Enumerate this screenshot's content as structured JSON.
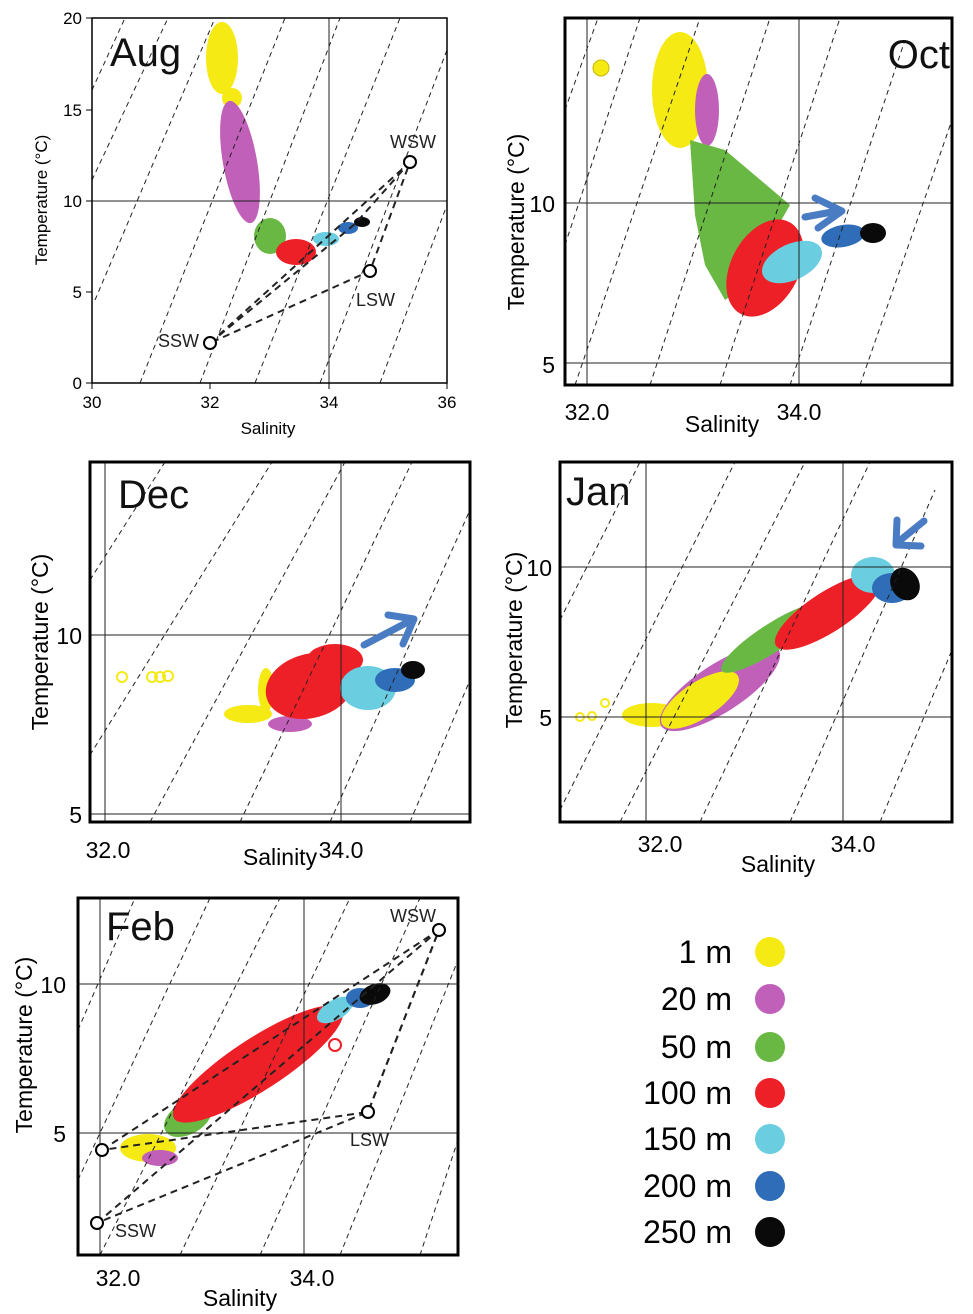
{
  "panels": [
    {
      "month": "Aug",
      "xlabel": "Salinity",
      "ylabel": "Temperature (°C)",
      "x_ticks": [
        "30",
        "32",
        "34",
        "36"
      ],
      "y_ticks": [
        "0",
        "5",
        "10",
        "15",
        "20"
      ],
      "water_masses": [
        {
          "label": "WSW",
          "salinity": 35.4,
          "temperature": 12.1
        },
        {
          "label": "LSW",
          "salinity": 34.6,
          "temperature": 6.0
        },
        {
          "label": "SSW",
          "salinity": 32.0,
          "temperature": 2.2
        }
      ]
    },
    {
      "month": "Oct",
      "xlabel": "Salinity",
      "ylabel": "Temperature (°C)",
      "x_ticks": [
        "32.0",
        "34.0"
      ],
      "y_ticks": [
        "5",
        "10"
      ]
    },
    {
      "month": "Dec",
      "xlabel": "Salinity",
      "ylabel": "Temperature (°C)",
      "x_ticks": [
        "32.0",
        "34.0"
      ],
      "y_ticks": [
        "5",
        "10"
      ]
    },
    {
      "month": "Jan",
      "xlabel": "Salinity",
      "ylabel": "Temperature (°C)",
      "x_ticks": [
        "32.0",
        "34.0"
      ],
      "y_ticks": [
        "5",
        "10"
      ]
    },
    {
      "month": "Feb",
      "xlabel": "Salinity",
      "ylabel": "Temperature (°C)",
      "x_ticks": [
        "32.0",
        "34.0"
      ],
      "y_ticks": [
        "5",
        "10"
      ],
      "water_masses": [
        {
          "label": "WSW",
          "salinity": 35.1,
          "temperature": 11.8
        },
        {
          "label": "LSW",
          "salinity": 34.6,
          "temperature": 5.7
        },
        {
          "label": "SSW",
          "salinity": 31.9,
          "temperature": 2.0
        }
      ]
    }
  ],
  "legend": [
    {
      "label": "1 m",
      "color": "#f5ea14"
    },
    {
      "label": "20 m",
      "color": "#c060b8"
    },
    {
      "label": "50 m",
      "color": "#6ab844"
    },
    {
      "label": "100 m",
      "color": "#ee2027"
    },
    {
      "label": "150 m",
      "color": "#6acee0"
    },
    {
      "label": "200 m",
      "color": "#2f6db8"
    },
    {
      "label": "250 m",
      "color": "#0a0a0a"
    }
  ],
  "chart_data": [
    {
      "type": "scatter",
      "title": "Aug",
      "xlabel": "Salinity",
      "ylabel": "Temperature (°C)",
      "xlim": [
        30,
        36
      ],
      "ylim": [
        0,
        20
      ],
      "series": [
        {
          "name": "1 m",
          "points": [
            [
              32.1,
              15.5
            ],
            [
              32.4,
              16.5
            ],
            [
              32.2,
              17.5
            ],
            [
              32.3,
              18.5
            ],
            [
              32.4,
              19.3
            ]
          ]
        },
        {
          "name": "20 m",
          "points": [
            [
              32.4,
              15
            ],
            [
              32.6,
              13
            ],
            [
              32.7,
              11.5
            ],
            [
              32.9,
              10
            ]
          ]
        },
        {
          "name": "50 m",
          "points": [
            [
              33.0,
              9
            ],
            [
              33.1,
              8
            ],
            [
              33.3,
              7.5
            ],
            [
              32.9,
              7
            ]
          ]
        },
        {
          "name": "100 m",
          "points": [
            [
              33.2,
              7
            ],
            [
              33.6,
              6.8
            ],
            [
              33.8,
              7.5
            ]
          ]
        },
        {
          "name": "150 m",
          "points": [
            [
              33.8,
              7.8
            ],
            [
              34.0,
              8.1
            ],
            [
              34.1,
              8.4
            ]
          ]
        },
        {
          "name": "200 m",
          "points": [
            [
              34.2,
              8.4
            ],
            [
              34.4,
              8.6
            ]
          ]
        },
        {
          "name": "250 m",
          "points": [
            [
              34.5,
              8.7
            ],
            [
              34.7,
              8.8
            ]
          ]
        }
      ]
    },
    {
      "type": "scatter",
      "title": "Oct",
      "xlabel": "Salinity",
      "ylabel": "Temperature (°C)",
      "xlim": [
        31.8,
        35.8
      ],
      "ylim": [
        4.5,
        15.3
      ],
      "series": [
        {
          "name": "1 m",
          "points": [
            [
              32.0,
              14.1
            ],
            [
              32.8,
              14.5
            ],
            [
              32.9,
              13.5
            ],
            [
              33.0,
              12.5
            ],
            [
              33.1,
              12
            ]
          ]
        },
        {
          "name": "20 m",
          "points": [
            [
              33.2,
              13
            ],
            [
              33.3,
              12.5
            ],
            [
              33.4,
              12
            ]
          ]
        },
        {
          "name": "50 m",
          "points": [
            [
              33.0,
              11.5
            ],
            [
              33.2,
              10
            ],
            [
              33.3,
              8
            ],
            [
              33.5,
              9.5
            ],
            [
              33.7,
              10
            ]
          ]
        },
        {
          "name": "100 m",
          "points": [
            [
              33.3,
              7
            ],
            [
              33.6,
              8
            ],
            [
              33.8,
              9
            ],
            [
              34.0,
              9.5
            ]
          ]
        },
        {
          "name": "150 m",
          "points": [
            [
              33.8,
              7.5
            ],
            [
              34.1,
              8
            ],
            [
              34.3,
              8.5
            ]
          ]
        },
        {
          "name": "200 m",
          "points": [
            [
              34.4,
              8.7
            ],
            [
              34.6,
              9
            ]
          ]
        },
        {
          "name": "250 m",
          "points": [
            [
              34.7,
              9.0
            ],
            [
              34.9,
              9.2
            ]
          ]
        }
      ]
    },
    {
      "type": "scatter",
      "title": "Dec",
      "xlabel": "Salinity",
      "ylabel": "Temperature (°C)",
      "xlim": [
        31.9,
        35.5
      ],
      "ylim": [
        4.8,
        15.5
      ],
      "series": [
        {
          "name": "1 m",
          "points": [
            [
              32.2,
              8.8
            ],
            [
              32.4,
              8.8
            ],
            [
              32.6,
              8.8
            ],
            [
              33.0,
              7.8
            ],
            [
              33.3,
              8.0
            ]
          ]
        },
        {
          "name": "20 m",
          "points": [
            [
              33.3,
              8.5
            ],
            [
              33.4,
              7.6
            ]
          ]
        },
        {
          "name": "50 m",
          "points": [
            [
              33.3,
              8.2
            ]
          ]
        },
        {
          "name": "100 m",
          "points": [
            [
              33.5,
              8.0
            ],
            [
              33.7,
              8.8
            ],
            [
              34.0,
              9.3
            ]
          ]
        },
        {
          "name": "150 m",
          "points": [
            [
              34.1,
              8.0
            ],
            [
              34.3,
              8.3
            ],
            [
              34.5,
              8.6
            ]
          ]
        },
        {
          "name": "200 m",
          "points": [
            [
              34.5,
              8.7
            ],
            [
              34.6,
              8.9
            ]
          ]
        },
        {
          "name": "250 m",
          "points": [
            [
              34.7,
              9.0
            ],
            [
              34.8,
              9.1
            ]
          ]
        }
      ]
    },
    {
      "type": "scatter",
      "title": "Jan",
      "xlabel": "Salinity",
      "ylabel": "Temperature (°C)",
      "xlim": [
        31.0,
        35.5
      ],
      "ylim": [
        2.8,
        12.5
      ],
      "series": [
        {
          "name": "1 m",
          "points": [
            [
              31.2,
              5
            ],
            [
              31.4,
              5.1
            ],
            [
              32.2,
              5.1
            ],
            [
              32.4,
              5.4
            ],
            [
              32.7,
              6.8
            ]
          ]
        },
        {
          "name": "20 m",
          "points": [
            [
              32.2,
              4.5
            ],
            [
              32.5,
              5.2
            ],
            [
              32.9,
              6.2
            ]
          ]
        },
        {
          "name": "50 m",
          "points": [
            [
              32.6,
              5.5
            ],
            [
              33.0,
              6.5
            ],
            [
              33.3,
              7.5
            ],
            [
              33.6,
              8.5
            ]
          ]
        },
        {
          "name": "100 m",
          "points": [
            [
              33.2,
              7
            ],
            [
              33.5,
              8
            ],
            [
              33.8,
              9
            ],
            [
              34.2,
              9.8
            ]
          ]
        },
        {
          "name": "150 m",
          "points": [
            [
              34.0,
              9.0
            ],
            [
              34.2,
              10.2
            ]
          ]
        },
        {
          "name": "200 m",
          "points": [
            [
              34.3,
              9.2
            ],
            [
              34.5,
              9.5
            ]
          ]
        },
        {
          "name": "250 m",
          "points": [
            [
              34.5,
              9.0
            ],
            [
              34.7,
              9.7
            ]
          ]
        }
      ]
    },
    {
      "type": "scatter",
      "title": "Feb",
      "xlabel": "Salinity",
      "ylabel": "Temperature (°C)",
      "xlim": [
        31.8,
        35.3
      ],
      "ylim": [
        0.8,
        13.0
      ],
      "series": [
        {
          "name": "1 m",
          "points": [
            [
              32.1,
              4.5
            ],
            [
              32.3,
              4.4
            ],
            [
              32.6,
              4.8
            ]
          ]
        },
        {
          "name": "20 m",
          "points": [
            [
              32.3,
              4.3
            ],
            [
              32.6,
              4.6
            ]
          ]
        },
        {
          "name": "50 m",
          "points": [
            [
              32.6,
              5.2
            ],
            [
              32.8,
              6.3
            ]
          ]
        },
        {
          "name": "100 m",
          "points": [
            [
              32.8,
              5.5
            ],
            [
              33.2,
              6.5
            ],
            [
              33.6,
              7.8
            ],
            [
              34.0,
              9.0
            ],
            [
              34.2,
              8.0
            ]
          ]
        },
        {
          "name": "150 m",
          "points": [
            [
              34.0,
              8.8
            ],
            [
              34.2,
              9.3
            ]
          ]
        },
        {
          "name": "200 m",
          "points": [
            [
              34.3,
              9.5
            ],
            [
              34.5,
              9.8
            ]
          ]
        },
        {
          "name": "250 m",
          "points": [
            [
              34.5,
              9.7
            ],
            [
              34.7,
              9.9
            ]
          ]
        }
      ]
    }
  ]
}
